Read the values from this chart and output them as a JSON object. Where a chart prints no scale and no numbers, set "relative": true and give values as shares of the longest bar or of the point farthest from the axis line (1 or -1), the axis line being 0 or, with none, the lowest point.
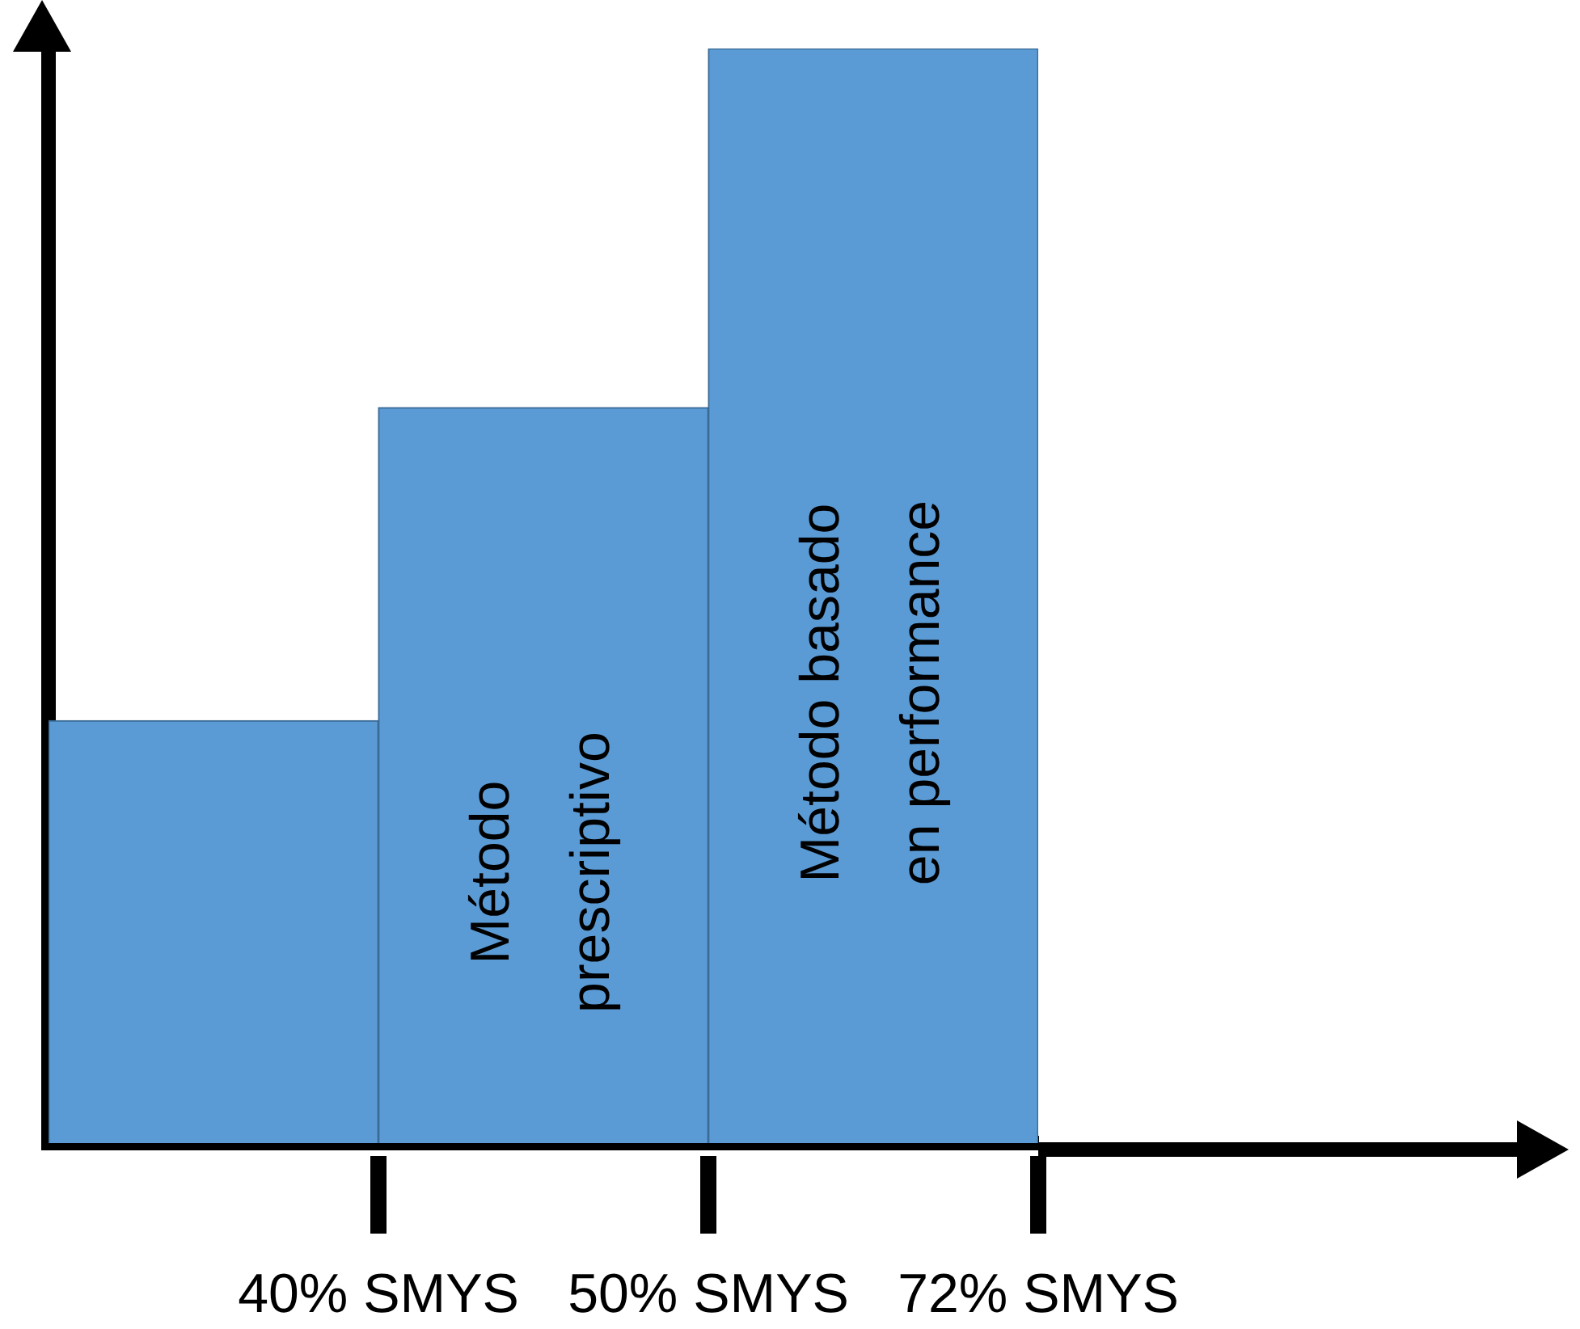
{
  "chart_data": {
    "type": "bar",
    "relative": true,
    "categories": [
      null,
      null,
      null
    ],
    "values": [
      0.386,
      0.672,
      1
    ],
    "colors": [
      "#5b9bd5",
      "#5b9bd5",
      "#5b9bd5"
    ],
    "annotations": [
      "40% SMYS",
      "50% SMYS",
      "72% SMYS",
      "Método\nprescriptivo",
      "Método basado\nen performance"
    ],
    "grid": false,
    "legend": false
  }
}
